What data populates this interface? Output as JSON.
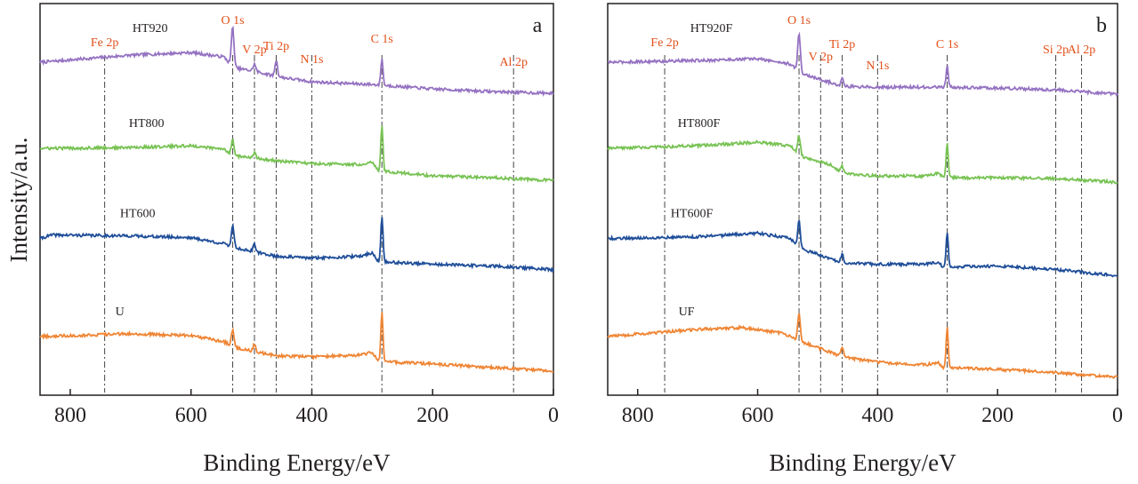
{
  "ylabel": "Intensity/a.u.",
  "colors": {
    "purple": "#9572c2",
    "green": "#77c253",
    "blue": "#1f4e99",
    "orange": "#ef8534",
    "label": "#e2501a",
    "axis": "#231f20"
  },
  "chart_data": [
    {
      "type": "line",
      "panel_label": "a",
      "xlabel": "Binding Energy/eV",
      "xlim": [
        850,
        0
      ],
      "x_reversed": true,
      "xticks": [
        800,
        600,
        400,
        200,
        0
      ],
      "yticks": [],
      "peak_labels": [
        {
          "name": "Fe 2p",
          "x": 743
        },
        {
          "name": "O 1s",
          "x": 531
        },
        {
          "name": "V 2p",
          "x": 495
        },
        {
          "name": "Ti 2p",
          "x": 459
        },
        {
          "name": "N 1s",
          "x": 400
        },
        {
          "name": "C 1s",
          "x": 284
        },
        {
          "name": "Al 2p",
          "x": 66
        }
      ],
      "series": [
        {
          "name": "HT920",
          "color": "purple",
          "baseline": 50,
          "shape": [
            [
              850,
              0
            ],
            [
              700,
              8
            ],
            [
              600,
              11
            ],
            [
              545,
              6
            ],
            [
              530,
              -6
            ],
            [
              495,
              -10
            ],
            [
              459,
              -16
            ],
            [
              400,
              -22
            ],
            [
              300,
              -25
            ],
            [
              200,
              -30
            ],
            [
              100,
              -33
            ],
            [
              0,
              -35
            ]
          ],
          "peaks": [
            [
              531,
              45,
              3
            ],
            [
              495,
              8,
              3
            ],
            [
              459,
              18,
              3
            ],
            [
              284,
              30,
              2.5
            ]
          ]
        },
        {
          "name": "HT800",
          "color": "green",
          "baseline": 30,
          "shape": [
            [
              850,
              0
            ],
            [
              700,
              1
            ],
            [
              600,
              3
            ],
            [
              545,
              -1
            ],
            [
              530,
              -8
            ],
            [
              459,
              -14
            ],
            [
              400,
              -17
            ],
            [
              320,
              -18
            ],
            [
              300,
              -15
            ],
            [
              290,
              -25
            ],
            [
              200,
              -31
            ],
            [
              100,
              -33
            ],
            [
              0,
              -36
            ]
          ],
          "peaks": [
            [
              531,
              18,
              3
            ],
            [
              495,
              6,
              3
            ],
            [
              284,
              52,
              2.5
            ]
          ]
        },
        {
          "name": "HT600",
          "color": "blue",
          "baseline": 30,
          "shape": [
            [
              850,
              0
            ],
            [
              830,
              4
            ],
            [
              700,
              3
            ],
            [
              600,
              1
            ],
            [
              545,
              -6
            ],
            [
              530,
              -10
            ],
            [
              459,
              -20
            ],
            [
              400,
              -22
            ],
            [
              320,
              -20
            ],
            [
              300,
              -16
            ],
            [
              290,
              -26
            ],
            [
              200,
              -29
            ],
            [
              100,
              -31
            ],
            [
              0,
              -35
            ]
          ],
          "peaks": [
            [
              531,
              25,
              3
            ],
            [
              495,
              8,
              3
            ],
            [
              284,
              52,
              2.5
            ]
          ]
        },
        {
          "name": "U",
          "color": "orange",
          "baseline": 30,
          "shape": [
            [
              850,
              0
            ],
            [
              700,
              3
            ],
            [
              600,
              1
            ],
            [
              545,
              -6
            ],
            [
              530,
              -12
            ],
            [
              459,
              -22
            ],
            [
              400,
              -23
            ],
            [
              320,
              -21
            ],
            [
              300,
              -18
            ],
            [
              290,
              -28
            ],
            [
              200,
              -31
            ],
            [
              100,
              -35
            ],
            [
              0,
              -39
            ]
          ],
          "peaks": [
            [
              531,
              20,
              3
            ],
            [
              495,
              8,
              3
            ],
            [
              284,
              55,
              2.5
            ]
          ]
        }
      ]
    },
    {
      "type": "line",
      "panel_label": "b",
      "xlabel": "Binding Energy/eV",
      "xlim": [
        850,
        0
      ],
      "x_reversed": true,
      "xticks": [
        800,
        600,
        400,
        200,
        0
      ],
      "yticks": [],
      "peak_labels": [
        {
          "name": "Fe 2p",
          "x": 755
        },
        {
          "name": "O 1s",
          "x": 531
        },
        {
          "name": "V 2p",
          "x": 495
        },
        {
          "name": "Ti 2p",
          "x": 459
        },
        {
          "name": "N 1s",
          "x": 400
        },
        {
          "name": "C 1s",
          "x": 284
        },
        {
          "name": "Si 2p",
          "x": 103
        },
        {
          "name": "Al 2p",
          "x": 60
        }
      ],
      "series": [
        {
          "name": "HT920F",
          "color": "purple",
          "baseline": 60,
          "shape": [
            [
              850,
              0
            ],
            [
              700,
              2
            ],
            [
              600,
              4
            ],
            [
              545,
              -2
            ],
            [
              530,
              -12
            ],
            [
              459,
              -27
            ],
            [
              400,
              -28
            ],
            [
              300,
              -28
            ],
            [
              200,
              -29
            ],
            [
              100,
              -31
            ],
            [
              0,
              -36
            ]
          ],
          "peaks": [
            [
              531,
              45,
              3
            ],
            [
              459,
              10,
              3
            ],
            [
              284,
              25,
              2.5
            ]
          ]
        },
        {
          "name": "HT800F",
          "color": "green",
          "baseline": 46,
          "shape": [
            [
              850,
              0
            ],
            [
              700,
              3
            ],
            [
              600,
              7
            ],
            [
              545,
              3
            ],
            [
              530,
              -8
            ],
            [
              480,
              -18
            ],
            [
              459,
              -28
            ],
            [
              400,
              -31
            ],
            [
              320,
              -31
            ],
            [
              300,
              -28
            ],
            [
              290,
              -33
            ],
            [
              200,
              -33
            ],
            [
              100,
              -34
            ],
            [
              0,
              -38
            ]
          ],
          "peaks": [
            [
              531,
              22,
              3
            ],
            [
              459,
              8,
              3
            ],
            [
              284,
              40,
              2.5
            ]
          ]
        },
        {
          "name": "HT600F",
          "color": "blue",
          "baseline": 34,
          "shape": [
            [
              850,
              0
            ],
            [
              700,
              2
            ],
            [
              600,
              6
            ],
            [
              545,
              0
            ],
            [
              530,
              -11
            ],
            [
              459,
              -27
            ],
            [
              400,
              -29
            ],
            [
              320,
              -29
            ],
            [
              300,
              -27
            ],
            [
              290,
              -32
            ],
            [
              200,
              -31
            ],
            [
              100,
              -35
            ],
            [
              0,
              -42
            ]
          ],
          "peaks": [
            [
              531,
              30,
              3
            ],
            [
              459,
              10,
              3
            ],
            [
              284,
              40,
              2.5
            ]
          ]
        },
        {
          "name": "UF",
          "color": "orange",
          "baseline": 35,
          "shape": [
            [
              850,
              0
            ],
            [
              700,
              8
            ],
            [
              630,
              10
            ],
            [
              560,
              4
            ],
            [
              545,
              0
            ],
            [
              530,
              -5
            ],
            [
              470,
              -20
            ],
            [
              459,
              -23
            ],
            [
              400,
              -29
            ],
            [
              320,
              -32
            ],
            [
              300,
              -29
            ],
            [
              290,
              -35
            ],
            [
              200,
              -37
            ],
            [
              100,
              -41
            ],
            [
              0,
              -46
            ]
          ],
          "peaks": [
            [
              531,
              30,
              3
            ],
            [
              459,
              12,
              3
            ],
            [
              284,
              45,
              2.5
            ]
          ]
        }
      ]
    }
  ]
}
